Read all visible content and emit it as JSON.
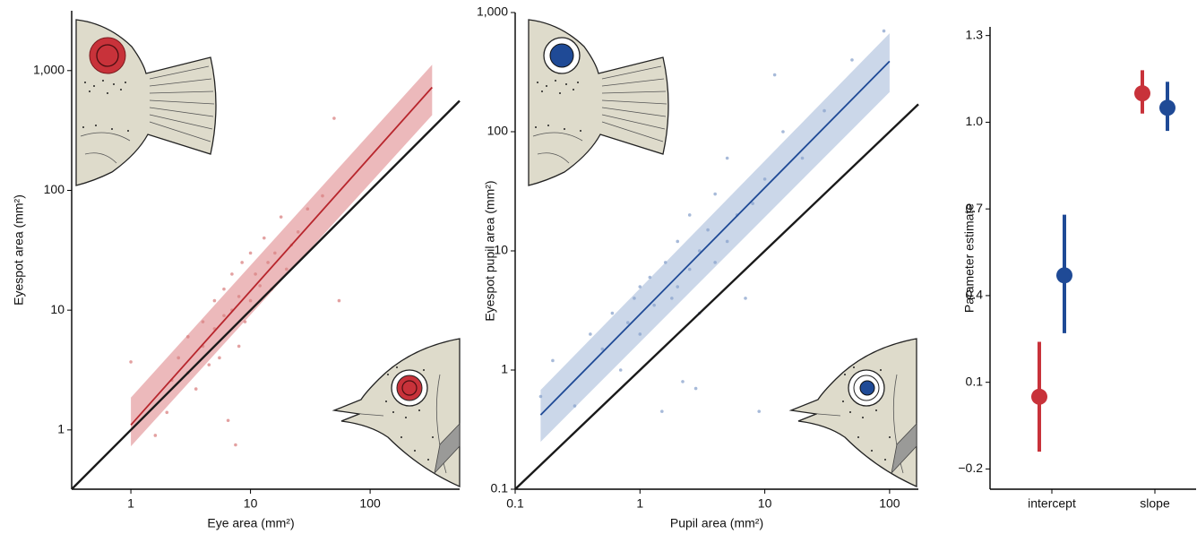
{
  "chart_data": [
    {
      "type": "scatter",
      "xlabel": "Eye area (mm²)",
      "ylabel": "Eyespot area (mm²)",
      "log_x": true,
      "log_y": true,
      "grid": false,
      "xlim": [
        0.32,
        560
      ],
      "ylim": [
        0.32,
        3160
      ],
      "xticks": [
        1,
        10,
        100
      ],
      "yticks": [
        1,
        10,
        100,
        {
          "value": 1000,
          "label": "1,000"
        }
      ],
      "points": {
        "color": "#d98282",
        "x": [
          1,
          1.6,
          2,
          2.2,
          2.5,
          3,
          3,
          3.5,
          4,
          4,
          4.5,
          5,
          5,
          5.5,
          6,
          6,
          6.5,
          7,
          7,
          7.5,
          8,
          8,
          8.5,
          9,
          10,
          10,
          11,
          12,
          13,
          14,
          15,
          16,
          18,
          20,
          22,
          25,
          30,
          40,
          50,
          55
        ],
        "y": [
          3.7,
          0.9,
          1.4,
          2.6,
          4,
          3,
          6,
          2.2,
          5,
          8,
          3.5,
          7,
          12,
          4,
          9,
          15,
          1.2,
          10,
          20,
          0.75,
          13,
          5,
          25,
          8,
          30,
          12,
          20,
          16,
          40,
          25,
          15,
          30,
          60,
          22,
          35,
          45,
          70,
          90,
          400,
          12
        ]
      },
      "band": {
        "color": "#e08a8e",
        "x": [
          1,
          330
        ],
        "lower": [
          0.73,
          425
        ],
        "upper": [
          1.86,
          1120
        ]
      },
      "fit": {
        "color": "#b8262d",
        "x": [
          1,
          330
        ],
        "y": [
          1.1,
          725
        ]
      },
      "identity": {
        "color": "#1a1a1a",
        "x": [
          0.32,
          560
        ],
        "y": [
          0.32,
          560
        ]
      }
    },
    {
      "type": "scatter",
      "xlabel": "Pupil area (mm²)",
      "ylabel": "Eyespot pupil area (mm²)",
      "log_x": true,
      "log_y": true,
      "grid": false,
      "xlim": [
        0.1,
        170
      ],
      "ylim": [
        0.1,
        1000
      ],
      "xticks": [
        0.1,
        1,
        10,
        100
      ],
      "yticks": [
        0.1,
        1,
        10,
        100,
        {
          "value": 1000,
          "label": "1,000"
        }
      ],
      "points": {
        "color": "#8aa3cc",
        "x": [
          0.16,
          0.2,
          0.3,
          0.4,
          0.5,
          0.6,
          0.7,
          0.8,
          0.9,
          1,
          1,
          1.2,
          1.3,
          1.5,
          1.6,
          1.8,
          2,
          2,
          2.2,
          2.5,
          2.5,
          3,
          3,
          3.5,
          4,
          4,
          5,
          5,
          6,
          7,
          8,
          9,
          10,
          12,
          14,
          20,
          30,
          50,
          90,
          2.8
        ],
        "y": [
          0.6,
          1.2,
          0.5,
          2,
          1.5,
          3,
          1,
          2.5,
          4,
          5,
          2,
          6,
          3.5,
          0.45,
          8,
          4,
          12,
          5,
          0.8,
          7,
          20,
          10,
          3,
          15,
          8,
          30,
          12,
          60,
          20,
          4,
          25,
          0.45,
          40,
          300,
          100,
          60,
          150,
          400,
          700,
          0.7
        ]
      },
      "band": {
        "color": "#a9bcdb",
        "x": [
          0.16,
          100
        ],
        "lower": [
          0.25,
          215
        ],
        "upper": [
          0.68,
          670
        ]
      },
      "fit": {
        "color": "#1f4a96",
        "x": [
          0.16,
          100
        ],
        "y": [
          0.42,
          390
        ]
      },
      "identity": {
        "color": "#1a1a1a",
        "x": [
          0.1,
          170
        ],
        "y": [
          0.1,
          170
        ]
      }
    },
    {
      "type": "pointrange",
      "ylabel": "Parameter estimate",
      "grid": false,
      "categories": [
        "intercept",
        "slope"
      ],
      "ylim": [
        -0.27,
        1.33
      ],
      "yticks": [
        {
          "value": -0.2,
          "label": "−0.2"
        },
        0.1,
        0.4,
        0.7,
        {
          "value": 1,
          "label": "1.0"
        },
        1.3
      ],
      "series": [
        {
          "color": "#c8323a",
          "values": [
            0.05,
            1.1
          ],
          "lower": [
            -0.14,
            1.03
          ],
          "upper": [
            0.24,
            1.18
          ]
        },
        {
          "color": "#1f4a96",
          "values": [
            0.47,
            1.05
          ],
          "lower": [
            0.27,
            0.97
          ],
          "upper": [
            0.68,
            1.14
          ]
        }
      ]
    }
  ]
}
